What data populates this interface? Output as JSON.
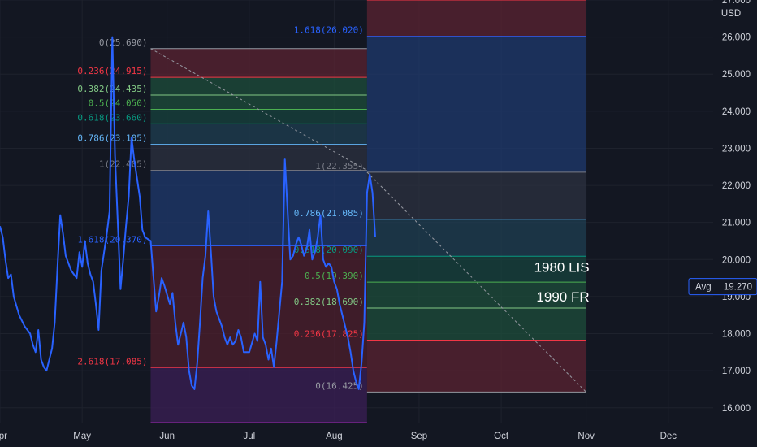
{
  "chart_data": {
    "type": "line",
    "currency": "USD",
    "ylim": [
      15.6,
      27.0
    ],
    "y_ticks": [
      16,
      17,
      18,
      19,
      20,
      21,
      22,
      23,
      24,
      25,
      26,
      27
    ],
    "y_tick_labels": [
      "16.000",
      "17.000",
      "18.000",
      "19.000",
      "20.000",
      "21.000",
      "22.000",
      "23.000",
      "24.000",
      "25.000",
      "26.000",
      "27.000"
    ],
    "x_ticks": [
      {
        "label": "Apr",
        "t": 0
      },
      {
        "label": "May",
        "t": 30
      },
      {
        "label": "Jun",
        "t": 61
      },
      {
        "label": "Jul",
        "t": 91
      },
      {
        "label": "Aug",
        "t": 122
      },
      {
        "label": "Sep",
        "t": 153
      },
      {
        "label": "Oct",
        "t": 183
      },
      {
        "label": "Nov",
        "t": 214
      },
      {
        "label": "Dec",
        "t": 244
      }
    ],
    "xlim": [
      0,
      258
    ],
    "current_price": 20.5,
    "avg": {
      "label": "Avg",
      "value": "19.270"
    },
    "series": [
      {
        "color": "#2962ff",
        "points": [
          [
            0,
            20.9
          ],
          [
            1,
            20.6
          ],
          [
            2,
            20.0
          ],
          [
            3,
            19.5
          ],
          [
            4,
            19.6
          ],
          [
            5,
            19.0
          ],
          [
            7,
            18.5
          ],
          [
            9,
            18.2
          ],
          [
            11,
            18.0
          ],
          [
            12,
            17.7
          ],
          [
            13,
            17.5
          ],
          [
            14,
            18.1
          ],
          [
            15,
            17.3
          ],
          [
            16,
            17.1
          ],
          [
            17,
            17.0
          ],
          [
            19,
            17.6
          ],
          [
            20,
            18.3
          ],
          [
            21,
            19.8
          ],
          [
            22,
            21.2
          ],
          [
            23,
            20.7
          ],
          [
            24,
            20.1
          ],
          [
            26,
            19.7
          ],
          [
            28,
            19.5
          ],
          [
            29,
            20.2
          ],
          [
            30,
            19.8
          ],
          [
            31,
            20.5
          ],
          [
            32,
            19.9
          ],
          [
            33,
            19.6
          ],
          [
            34,
            19.4
          ],
          [
            35,
            18.8
          ],
          [
            36,
            18.1
          ],
          [
            37,
            19.7
          ],
          [
            39,
            20.7
          ],
          [
            40,
            21.3
          ],
          [
            41,
            26.0
          ],
          [
            42,
            22.8
          ],
          [
            43,
            21.0
          ],
          [
            44,
            19.2
          ],
          [
            45,
            20.0
          ],
          [
            46,
            20.9
          ],
          [
            47,
            21.7
          ],
          [
            48,
            23.3
          ],
          [
            49,
            22.7
          ],
          [
            50,
            22.2
          ],
          [
            51,
            21.7
          ],
          [
            52,
            20.8
          ],
          [
            53,
            20.6
          ],
          [
            55,
            20.5
          ],
          [
            57,
            18.6
          ],
          [
            58,
            19.0
          ],
          [
            59,
            19.5
          ],
          [
            60,
            19.3
          ],
          [
            62,
            18.8
          ],
          [
            63,
            19.1
          ],
          [
            64,
            18.3
          ],
          [
            65,
            17.7
          ],
          [
            66,
            18.0
          ],
          [
            67,
            18.3
          ],
          [
            68,
            17.9
          ],
          [
            69,
            17.0
          ],
          [
            70,
            16.6
          ],
          [
            71,
            16.5
          ],
          [
            72,
            17.2
          ],
          [
            73,
            18.3
          ],
          [
            74,
            19.5
          ],
          [
            75,
            20.1
          ],
          [
            76,
            21.3
          ],
          [
            77,
            20.2
          ],
          [
            78,
            19.0
          ],
          [
            79,
            18.6
          ],
          [
            81,
            18.2
          ],
          [
            82,
            17.9
          ],
          [
            83,
            17.7
          ],
          [
            84,
            17.9
          ],
          [
            85,
            17.7
          ],
          [
            86,
            17.8
          ],
          [
            87,
            18.1
          ],
          [
            88,
            17.9
          ],
          [
            89,
            17.5
          ],
          [
            91,
            17.5
          ],
          [
            93,
            18.0
          ],
          [
            94,
            17.8
          ],
          [
            95,
            19.4
          ],
          [
            96,
            17.9
          ],
          [
            97,
            17.7
          ],
          [
            98,
            17.3
          ],
          [
            99,
            17.6
          ],
          [
            100,
            17.1
          ],
          [
            101,
            17.8
          ],
          [
            103,
            19.4
          ],
          [
            104,
            22.7
          ],
          [
            105,
            21.3
          ],
          [
            106,
            20.0
          ],
          [
            107,
            20.1
          ],
          [
            108,
            20.4
          ],
          [
            109,
            20.6
          ],
          [
            110,
            20.4
          ],
          [
            111,
            20.1
          ],
          [
            112,
            20.3
          ],
          [
            113,
            20.8
          ],
          [
            114,
            20.0
          ],
          [
            115,
            20.2
          ],
          [
            116,
            20.6
          ],
          [
            117,
            21.2
          ],
          [
            118,
            20.0
          ],
          [
            119,
            19.8
          ],
          [
            120,
            19.9
          ],
          [
            121,
            19.8
          ],
          [
            122,
            19.4
          ],
          [
            123,
            19.2
          ],
          [
            124,
            18.8
          ],
          [
            125,
            18.5
          ],
          [
            126,
            18.2
          ],
          [
            127,
            17.9
          ],
          [
            128,
            17.5
          ],
          [
            129,
            17.0
          ],
          [
            130,
            16.7
          ],
          [
            131,
            16.5
          ],
          [
            132,
            17.2
          ],
          [
            133,
            18.3
          ],
          [
            134,
            21.8
          ],
          [
            135,
            22.3
          ],
          [
            136,
            21.8
          ],
          [
            137,
            20.6
          ]
        ]
      }
    ],
    "fib_left": {
      "t0": 55,
      "t1": 134,
      "levels": [
        {
          "label": "0(25.690)",
          "value": 25.69,
          "color": "#9598a1",
          "fill": "#5b2332"
        },
        {
          "label": "0.236(24.915)",
          "value": 24.915,
          "color": "#f23645",
          "fill": "#1d4d3b"
        },
        {
          "label": "0.382(24.435)",
          "value": 24.435,
          "color": "#81c784",
          "fill": "#1d4d3b"
        },
        {
          "label": "0.5(24.050)",
          "value": 24.05,
          "color": "#4caf50",
          "fill": "#17433d"
        },
        {
          "label": "0.618(23.660)",
          "value": 23.66,
          "color": "#089981",
          "fill": "#1f3f52"
        },
        {
          "label": "0.786(23.105)",
          "value": 23.105,
          "color": "#64b5f6",
          "fill": "#2c3140"
        },
        {
          "label": "1(22.405)",
          "value": 22.405,
          "color": "#787b86",
          "fill": "#1f3a6e"
        },
        {
          "label": "1.618(20.370)",
          "value": 20.37,
          "color": "#2962ff",
          "fill": "#4d1f2c"
        },
        {
          "label": "2.618(17.085)",
          "value": 17.085,
          "color": "#f23645",
          "fill": "#3b1f55"
        },
        {
          "label": "",
          "value": 15.6,
          "color": "#9c27b0",
          "fill": null
        }
      ]
    },
    "fib_right": {
      "t0": 134,
      "t1": 214,
      "levels": [
        {
          "label": "",
          "value": 27.0,
          "color": "#f23645",
          "fill": "#5b2332"
        },
        {
          "label": "1.618(26.020)",
          "value": 26.02,
          "color": "#2962ff",
          "fill": "#1f3a6e"
        },
        {
          "label": "1(22.355)",
          "value": 22.355,
          "color": "#787b86",
          "fill": "#2c3140"
        },
        {
          "label": "0.786(21.085)",
          "value": 21.085,
          "color": "#64b5f6",
          "fill": "#1f3f52"
        },
        {
          "label": "0.618(20.090)",
          "value": 20.09,
          "color": "#089981",
          "fill": "#17433d"
        },
        {
          "label": "0.5(19.390)",
          "value": 19.39,
          "color": "#4caf50",
          "fill": "#1d4d3b"
        },
        {
          "label": "0.382(18.690)",
          "value": 18.69,
          "color": "#81c784",
          "fill": "#1d4d3b"
        },
        {
          "label": "0.236(17.825)",
          "value": 17.825,
          "color": "#f23645",
          "fill": "#5b2332"
        },
        {
          "label": "0(16.425)",
          "value": 16.425,
          "color": "#9598a1",
          "fill": null
        }
      ]
    },
    "trend_lines": [
      {
        "from": [
          55,
          25.69
        ],
        "to": [
          134,
          22.405
        ]
      },
      {
        "from": [
          134,
          22.355
        ],
        "to": [
          214,
          16.425
        ]
      }
    ],
    "annotations": [
      {
        "text": "1980 LIS",
        "t": 214,
        "value": 19.8
      },
      {
        "text": "1990 FR",
        "t": 214,
        "value": 19.0
      }
    ]
  }
}
